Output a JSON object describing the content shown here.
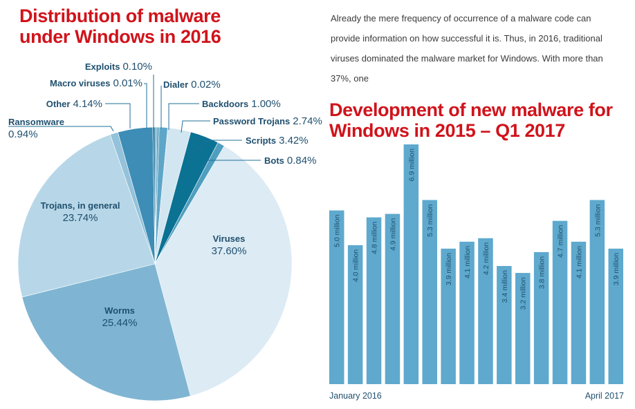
{
  "intro_text": "Already the mere frequency of occurrence of a malware code can provide information on how successful it is. Thus, in 2016, traditional viruses dominated the malware market for Windows. With more than 37%, one",
  "chart_data": [
    {
      "type": "pie",
      "title_lines": [
        "Distribution of malware",
        "under Windows in 2016"
      ],
      "slices": [
        {
          "name": "Exploits",
          "value": 0.1,
          "label": "0.10%",
          "color": "#6fb0cf"
        },
        {
          "name": "Dialer",
          "value": 0.02,
          "label": "0.02%",
          "color": "#5aa1c4"
        },
        {
          "name": "Backdoors",
          "value": 1.0,
          "label": "1.00%",
          "color": "#5ea6c8"
        },
        {
          "name": "Password Trojans",
          "value": 2.74,
          "label": "2.74%",
          "color": "#d2e6f1"
        },
        {
          "name": "Scripts",
          "value": 3.42,
          "label": "3.42%",
          "color": "#0b7294"
        },
        {
          "name": "Bots",
          "value": 0.84,
          "label": "0.84%",
          "color": "#4f9ebf"
        },
        {
          "name": "Viruses",
          "value": 37.6,
          "label": "37.60%",
          "color": "#dcebf4"
        },
        {
          "name": "Worms",
          "value": 25.44,
          "label": "25.44%",
          "color": "#7fb5d2"
        },
        {
          "name": "Trojans, in general",
          "value": 23.74,
          "label": "23.74%",
          "color": "#b7d7e8"
        },
        {
          "name": "Ransomware",
          "value": 0.94,
          "label": "0.94%",
          "color": "#94c2da"
        },
        {
          "name": "Other",
          "value": 4.14,
          "label": "4.14%",
          "color": "#3d8db6"
        },
        {
          "name": "Macro viruses",
          "value": 0.01,
          "label": "0.01%",
          "color": "#1b6f97"
        }
      ]
    },
    {
      "type": "bar",
      "title_lines": [
        "Development of new malware for",
        "Windows in 2015 – Q1 2017"
      ],
      "values": [
        5.0,
        4.0,
        4.8,
        4.9,
        6.9,
        5.3,
        3.9,
        4.1,
        4.2,
        3.4,
        3.2,
        3.8,
        4.7,
        4.1,
        5.3,
        3.9
      ],
      "value_labels": [
        "5.0 million",
        "4.0 million",
        "4.8 million",
        "4.9 million",
        "6.9 million",
        "5.3 million",
        "3.9 million",
        "4.1 million",
        "4.2 million",
        "3.4 million",
        "3.2 million",
        "3.8 million",
        "4.7 million",
        "4.1 million",
        "5.3 million",
        "3.9 million"
      ],
      "x_start_label": "January 2016",
      "x_end_label": "April 2017",
      "bar_color": "#5ea9cd"
    }
  ]
}
